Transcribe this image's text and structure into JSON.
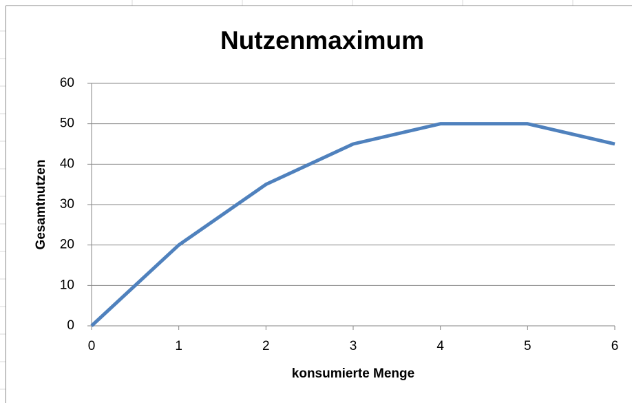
{
  "chart_data": {
    "type": "line",
    "title": "Nutzenmaximum",
    "x_label": "konsumierte Menge",
    "y_label": "Gesamtnutzen",
    "x": [
      0,
      1,
      2,
      3,
      4,
      5,
      6
    ],
    "series": [
      {
        "name": "Gesamtnutzen",
        "color": "#4f81bd",
        "values": [
          0,
          20,
          35,
          45,
          50,
          50,
          45
        ]
      }
    ],
    "xlim": [
      0,
      6
    ],
    "xticks": [
      0,
      1,
      2,
      3,
      4,
      5,
      6
    ],
    "ylim": [
      0,
      60
    ],
    "yticks": [
      0,
      10,
      20,
      30,
      40,
      50,
      60
    ],
    "grid": true
  }
}
